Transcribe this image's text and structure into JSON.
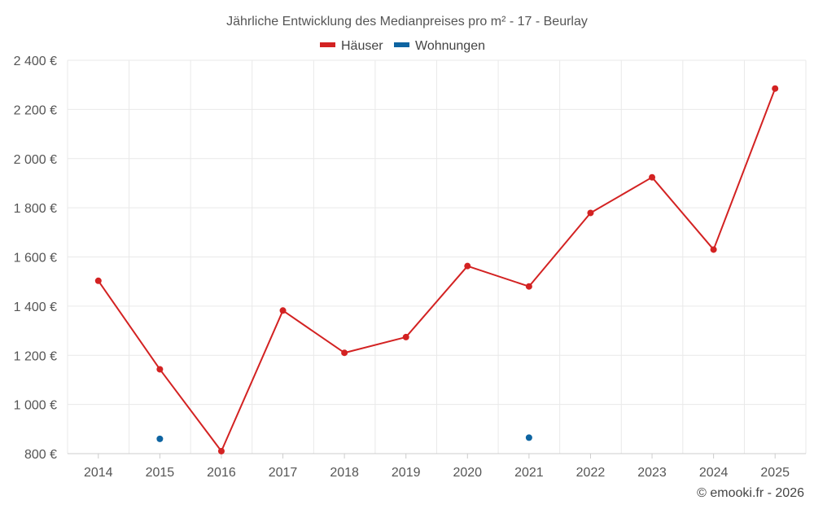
{
  "chart_data": {
    "type": "line",
    "title": "Jährliche Entwicklung des Medianpreises pro m² - 17 - Beurlay",
    "categories": [
      "2014",
      "2015",
      "2016",
      "2017",
      "2018",
      "2019",
      "2020",
      "2021",
      "2022",
      "2023",
      "2024",
      "2025"
    ],
    "series": [
      {
        "name": "Häuser",
        "color": "#d32222",
        "values": [
          1503,
          1143,
          810,
          1382,
          1210,
          1274,
          1563,
          1480,
          1779,
          1924,
          1630,
          2285
        ]
      },
      {
        "name": "Wohnungen",
        "color": "#0e64a1",
        "values": [
          null,
          860,
          null,
          null,
          null,
          null,
          null,
          865,
          null,
          null,
          null,
          null
        ]
      }
    ],
    "ylim": [
      800,
      2400
    ],
    "yticks": [
      800,
      1000,
      1200,
      1400,
      1600,
      1800,
      2000,
      2200,
      2400
    ],
    "ytick_labels": [
      "800 €",
      "1 000 €",
      "1 200 €",
      "1 400 €",
      "1 600 €",
      "1 800 €",
      "2 000 €",
      "2 200 €",
      "2 400 €"
    ],
    "xlabel": "",
    "ylabel": "",
    "grid": true,
    "legend_position": "top-center"
  },
  "credit": "© emooki.fr - 2026"
}
